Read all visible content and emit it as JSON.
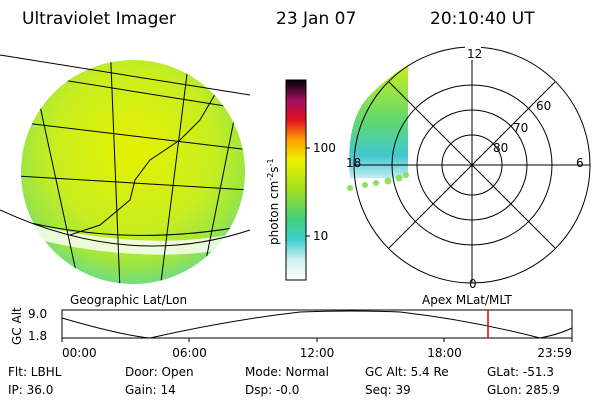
{
  "header": {
    "title": "Ultraviolet Imager",
    "date": "23 Jan 07",
    "time": "20:10:40 UT"
  },
  "colorbar": {
    "ticks": [
      "100",
      "10"
    ],
    "unit": {
      "base": "photon cm",
      "exp1": "-2",
      "mid": "s",
      "exp2": "-1"
    }
  },
  "polar": {
    "mlt_labels": {
      "top": "12",
      "left": "18",
      "right": "6",
      "bottom": "0"
    },
    "rings": [
      "60",
      "70",
      "80"
    ]
  },
  "panels": {
    "left_label": "Geographic Lat/Lon",
    "right_label": "Apex MLat/MLT"
  },
  "altitude_plot": {
    "axis_label": "GC Alt",
    "yticks": [
      "9.0",
      "1.8"
    ],
    "xticks": [
      "00:00",
      "06:00",
      "12:00",
      "18:00",
      "23:59"
    ]
  },
  "info": {
    "rows": [
      [
        "Flt: LBHL",
        "Door: Open",
        "Mode: Normal",
        "GC Alt: 5.4 Re",
        "GLat: -51.3"
      ],
      [
        "IP: 36.0",
        "Gain: 14",
        "Dsp: -0.0",
        "Seq: 39",
        "GLon: 285.9"
      ]
    ]
  }
}
